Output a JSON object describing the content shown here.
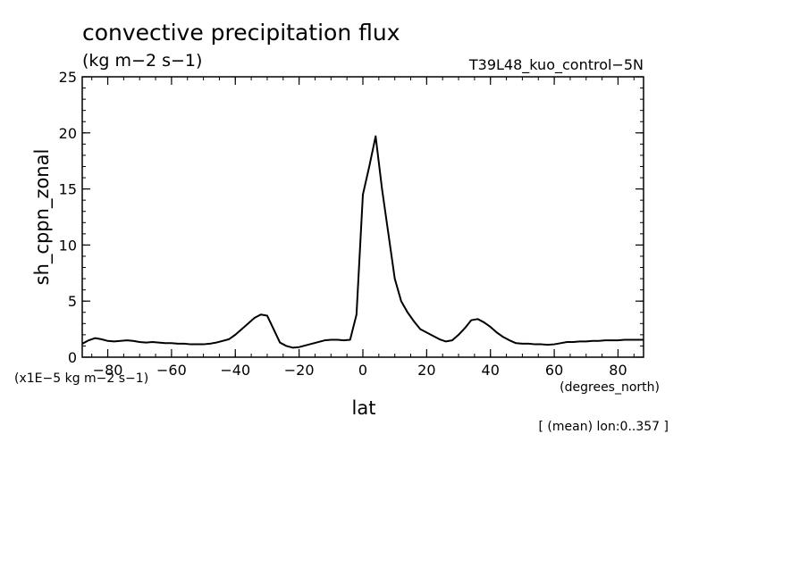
{
  "chart_data": {
    "type": "line",
    "title": "convective precipitation flux",
    "subtitle": "(kg m−2 s−1)",
    "run_label": "T39L48_kuo_control−5N",
    "xlabel": "lat",
    "x_units": "(degrees_north)",
    "ylabel": "sh_cppn_zonal",
    "y_scale_note": "(x1E−5 kg m−2 s−1)",
    "footnote": "[ (mean) lon:0..357 ]",
    "xlim": [
      -88,
      88
    ],
    "ylim": [
      0,
      25
    ],
    "x_ticks": [
      -80,
      -60,
      -40,
      -20,
      0,
      20,
      40,
      60,
      80
    ],
    "x_tick_labels": [
      "−80",
      "−60",
      "−40",
      "−20",
      "0",
      "20",
      "40",
      "60",
      "80"
    ],
    "y_ticks": [
      0,
      5,
      10,
      15,
      20,
      25
    ],
    "y_tick_labels": [
      "0",
      "5",
      "10",
      "15",
      "20",
      "25"
    ],
    "grid": false,
    "line_color": "#000000",
    "x": [
      -88,
      -86,
      -84,
      -82,
      -80,
      -78,
      -76,
      -74,
      -72,
      -70,
      -68,
      -66,
      -64,
      -62,
      -60,
      -58,
      -56,
      -54,
      -52,
      -50,
      -48,
      -46,
      -44,
      -42,
      -40,
      -38,
      -36,
      -34,
      -32,
      -30,
      -28,
      -26,
      -24,
      -22,
      -20,
      -18,
      -16,
      -14,
      -12,
      -10,
      -8,
      -6,
      -4,
      -2,
      0,
      2,
      4,
      6,
      8,
      10,
      12,
      14,
      16,
      18,
      20,
      22,
      24,
      26,
      28,
      30,
      32,
      34,
      36,
      38,
      40,
      42,
      44,
      46,
      48,
      50,
      52,
      54,
      56,
      58,
      60,
      62,
      64,
      66,
      68,
      70,
      72,
      74,
      76,
      78,
      80,
      82,
      84,
      86,
      88
    ],
    "values": [
      1.2,
      1.5,
      1.7,
      1.6,
      1.45,
      1.4,
      1.45,
      1.5,
      1.45,
      1.35,
      1.3,
      1.35,
      1.3,
      1.25,
      1.25,
      1.2,
      1.2,
      1.15,
      1.15,
      1.15,
      1.2,
      1.3,
      1.45,
      1.6,
      2.0,
      2.5,
      3.0,
      3.5,
      3.8,
      3.7,
      2.5,
      1.3,
      1.0,
      0.85,
      0.9,
      1.05,
      1.2,
      1.35,
      1.5,
      1.55,
      1.55,
      1.5,
      1.55,
      3.8,
      14.5,
      17.0,
      19.7,
      15.0,
      11.0,
      7.0,
      5.0,
      4.0,
      3.2,
      2.5,
      2.2,
      1.9,
      1.6,
      1.4,
      1.5,
      2.0,
      2.6,
      3.3,
      3.4,
      3.1,
      2.7,
      2.2,
      1.8,
      1.5,
      1.25,
      1.2,
      1.2,
      1.15,
      1.15,
      1.1,
      1.15,
      1.25,
      1.35,
      1.35,
      1.4,
      1.4,
      1.45,
      1.45,
      1.5,
      1.5,
      1.5,
      1.55,
      1.55,
      1.55,
      1.55
    ]
  }
}
